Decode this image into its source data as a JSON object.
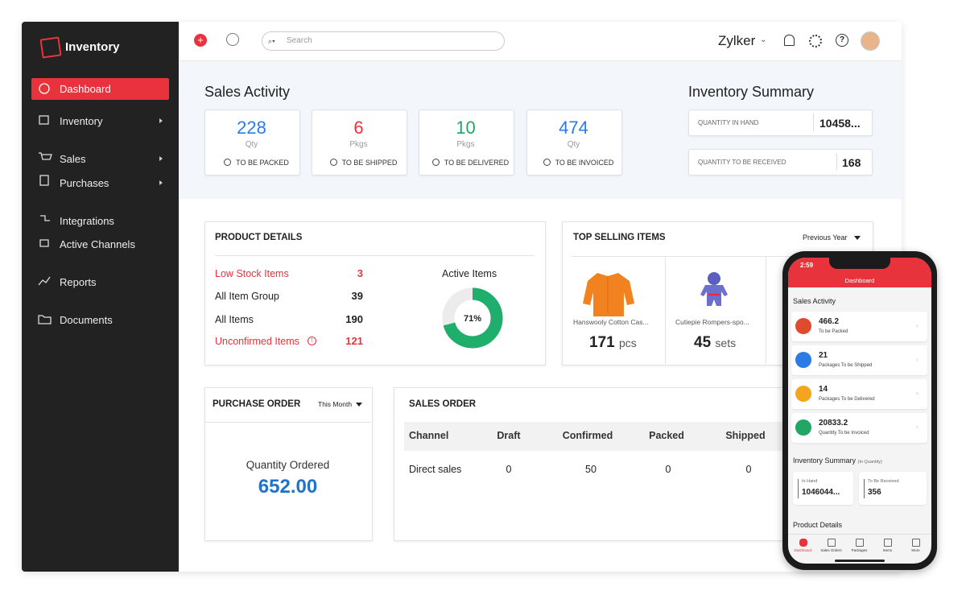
{
  "sidebar": {
    "brand": "Inventory",
    "nav": [
      "Dashboard",
      "Inventory",
      "Sales",
      "Purchases",
      "Integrations",
      "Active Channels",
      "Reports",
      "Documents"
    ]
  },
  "topbar": {
    "search_placeholder": "Search",
    "org": "Zylker"
  },
  "sales_activity": {
    "title": "Sales Activity",
    "cards": [
      {
        "value": "228",
        "unit": "Qty",
        "label": "TO BE PACKED"
      },
      {
        "value": "6",
        "unit": "Pkgs",
        "label": "TO BE SHIPPED"
      },
      {
        "value": "10",
        "unit": "Pkgs",
        "label": "TO BE DELIVERED"
      },
      {
        "value": "474",
        "unit": "Qty",
        "label": "TO BE INVOICED"
      }
    ]
  },
  "inventory_summary": {
    "title": "Inventory Summary",
    "rows": [
      {
        "label": "QUANTITY IN HAND",
        "value": "10458..."
      },
      {
        "label": "QUANTITY TO BE RECEIVED",
        "value": "168"
      }
    ]
  },
  "product_details": {
    "title": "PRODUCT DETAILS",
    "rows": [
      {
        "label": "Low Stock Items",
        "value": "3"
      },
      {
        "label": "All Item Group",
        "value": "39"
      },
      {
        "label": "All Items",
        "value": "190"
      },
      {
        "label": "Unconfirmed Items",
        "value": "121"
      }
    ],
    "active_items": {
      "title": "Active Items",
      "value": 71,
      "label": "71%"
    }
  },
  "top_selling": {
    "title": "TOP SELLING ITEMS",
    "period": "Previous Year",
    "items": [
      {
        "name": "Hanswooly Cotton Cas...",
        "qty": "171",
        "unit": "pcs"
      },
      {
        "name": "Cutiepie Rompers-spo...",
        "qty": "45",
        "unit": "sets"
      }
    ]
  },
  "purchase_order": {
    "title": "PURCHASE ORDER",
    "period": "This Month",
    "label": "Quantity Ordered",
    "value": "652.00"
  },
  "sales_order": {
    "title": "SALES ORDER",
    "table": {
      "header": [
        "Channel",
        "Draft",
        "Confirmed",
        "Packed",
        "Shipped"
      ],
      "rows": [
        [
          "Direct sales",
          "0",
          "50",
          "0",
          "0"
        ]
      ]
    }
  },
  "phone": {
    "time": "2:59",
    "header": "Dashboard",
    "sales_activity": "Sales Activity",
    "cards": [
      {
        "value": "466.2",
        "label": "To be Packed"
      },
      {
        "value": "21",
        "label": "Packages To be Shipped"
      },
      {
        "value": "14",
        "label": "Packages To be Delivered"
      },
      {
        "value": "20833.2",
        "label": "Quantity To be Invoiced"
      }
    ],
    "inventory_summary": "Inventory Summary",
    "inventory_note": "(In Quantity)",
    "summary": [
      {
        "label": "In Hand",
        "value": "1046044..."
      },
      {
        "label": "To Be Received",
        "value": "356"
      }
    ],
    "product_details": "Product Details",
    "tabs": [
      "Dashboard",
      "Sales Orders",
      "Packages",
      "Items",
      "More"
    ]
  }
}
